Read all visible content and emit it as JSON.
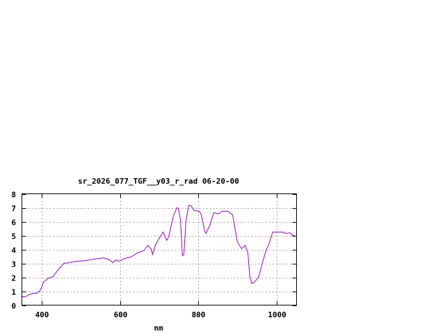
{
  "chart_data": {
    "type": "line",
    "title": "sr_2026_077_TGF__y03_r_rad 06-20-00",
    "xlabel": "nm",
    "ylabel": "",
    "xlim": [
      350,
      1050
    ],
    "ylim": [
      0,
      8
    ],
    "xticks": [
      400,
      600,
      800,
      1000
    ],
    "yticks": [
      0,
      1,
      2,
      3,
      4,
      5,
      6,
      7,
      8
    ],
    "grid": true,
    "line_color": "#9400d3",
    "series": [
      {
        "x": [
          350,
          359,
          368,
          379,
          388,
          395,
          400,
          405,
          418,
          427,
          432,
          444,
          457,
          471,
          488,
          515,
          533,
          559,
          573,
          582,
          589,
          598,
          612,
          627,
          639,
          644,
          660,
          671,
          680,
          683,
          690,
          699,
          710,
          719,
          724,
          736,
          745,
          749,
          754,
          759,
          763,
          768,
          775,
          781,
          789,
          802,
          807,
          816,
          819,
          830,
          839,
          851,
          860,
          874,
          887,
          899,
          910,
          919,
          926,
          931,
          936,
          943,
          954,
          963,
          972,
          981,
          989,
          1002,
          1014,
          1023,
          1032,
          1041,
          1050
        ],
        "y": [
          0.6,
          0.6,
          0.75,
          0.85,
          0.85,
          1.0,
          1.25,
          1.65,
          1.95,
          2.0,
          2.15,
          2.6,
          3.0,
          3.05,
          3.15,
          3.2,
          3.3,
          3.4,
          3.25,
          3.05,
          3.25,
          3.15,
          3.35,
          3.45,
          3.65,
          3.75,
          3.9,
          4.3,
          4.0,
          3.65,
          4.3,
          4.75,
          5.25,
          4.65,
          4.9,
          6.4,
          7.0,
          6.95,
          6.15,
          3.55,
          3.65,
          6.05,
          7.15,
          7.15,
          6.8,
          6.75,
          6.5,
          5.3,
          5.15,
          5.8,
          6.65,
          6.55,
          6.75,
          6.75,
          6.5,
          4.55,
          4.05,
          4.3,
          3.75,
          2.05,
          1.55,
          1.65,
          2.05,
          3.05,
          3.9,
          4.5,
          5.25,
          5.25,
          5.25,
          5.15,
          5.2,
          5.0,
          4.95
        ]
      }
    ]
  }
}
